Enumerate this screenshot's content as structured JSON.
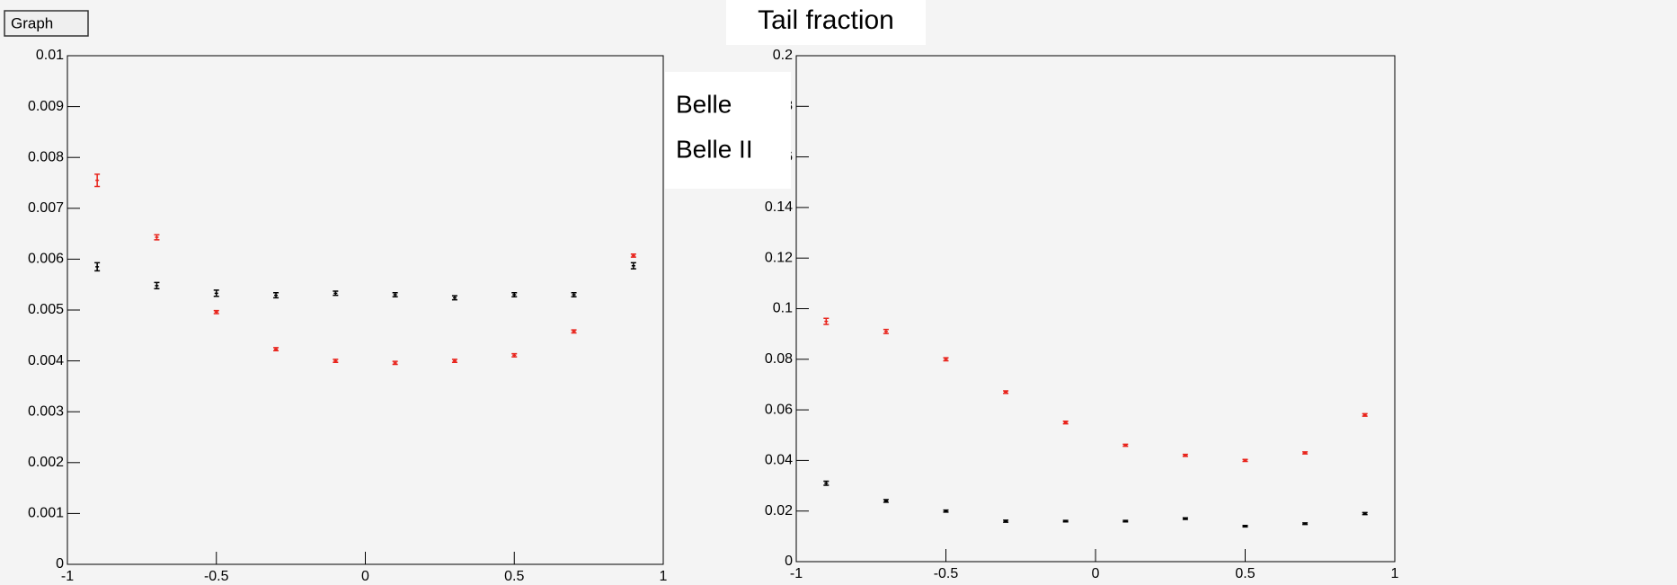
{
  "chart_data": [
    {
      "type": "scatter",
      "title": "Graph",
      "x": [
        -0.9,
        -0.7,
        -0.5,
        -0.3,
        -0.1,
        0.1,
        0.3,
        0.5,
        0.7,
        0.9
      ],
      "series": [
        {
          "color": "#000000",
          "values": [
            0.00585,
            0.00548,
            0.00533,
            0.00529,
            0.00533,
            0.0053,
            0.00524,
            0.0053,
            0.0053,
            0.00587
          ],
          "errors": [
            8e-05,
            6e-05,
            6e-05,
            5e-05,
            4e-05,
            4e-05,
            4e-05,
            4e-05,
            4e-05,
            6e-05
          ]
        },
        {
          "color": "#e8231b",
          "values": [
            0.00755,
            0.00643,
            0.00496,
            0.00423,
            0.004,
            0.00396,
            0.004,
            0.00411,
            0.00458,
            0.00607
          ],
          "errors": [
            0.00012,
            5e-05,
            3e-05,
            3e-05,
            3e-05,
            3e-05,
            3e-05,
            3e-05,
            3e-05,
            3e-05
          ]
        }
      ],
      "xlim": [
        -1,
        1
      ],
      "xticks": [
        -1,
        -0.5,
        0,
        0.5,
        1
      ],
      "ylim": [
        0,
        0.01
      ],
      "yticks": [
        0,
        0.001,
        0.002,
        0.003,
        0.004,
        0.005,
        0.006,
        0.007,
        0.008,
        0.009,
        0.01
      ]
    },
    {
      "type": "scatter",
      "title": "Tail fraction",
      "x": [
        -0.9,
        -0.7,
        -0.5,
        -0.3,
        -0.1,
        0.1,
        0.3,
        0.5,
        0.7,
        0.9
      ],
      "series": [
        {
          "name": "Belle",
          "color": "#000000",
          "values": [
            0.031,
            0.024,
            0.02,
            0.016,
            0.016,
            0.016,
            0.017,
            0.014,
            0.015,
            0.019
          ],
          "errors": [
            0.0008,
            0.0005,
            0.0004,
            0.0004,
            0.0003,
            0.0003,
            0.0003,
            0.0003,
            0.0003,
            0.0004
          ]
        },
        {
          "name": "Belle II",
          "color": "#e8231b",
          "values": [
            0.095,
            0.091,
            0.08,
            0.067,
            0.055,
            0.046,
            0.042,
            0.04,
            0.043,
            0.058
          ],
          "errors": [
            0.0012,
            0.0008,
            0.0006,
            0.0005,
            0.0005,
            0.0004,
            0.0004,
            0.0004,
            0.0004,
            0.0005
          ]
        }
      ],
      "xlim": [
        -1,
        1
      ],
      "xticks": [
        -1,
        -0.5,
        0,
        0.5,
        1
      ],
      "ylim": [
        0,
        0.2
      ],
      "yticks": [
        0,
        0.02,
        0.04,
        0.06,
        0.08,
        0.1,
        0.12,
        0.14,
        0.16,
        0.18,
        0.2
      ]
    }
  ]
}
